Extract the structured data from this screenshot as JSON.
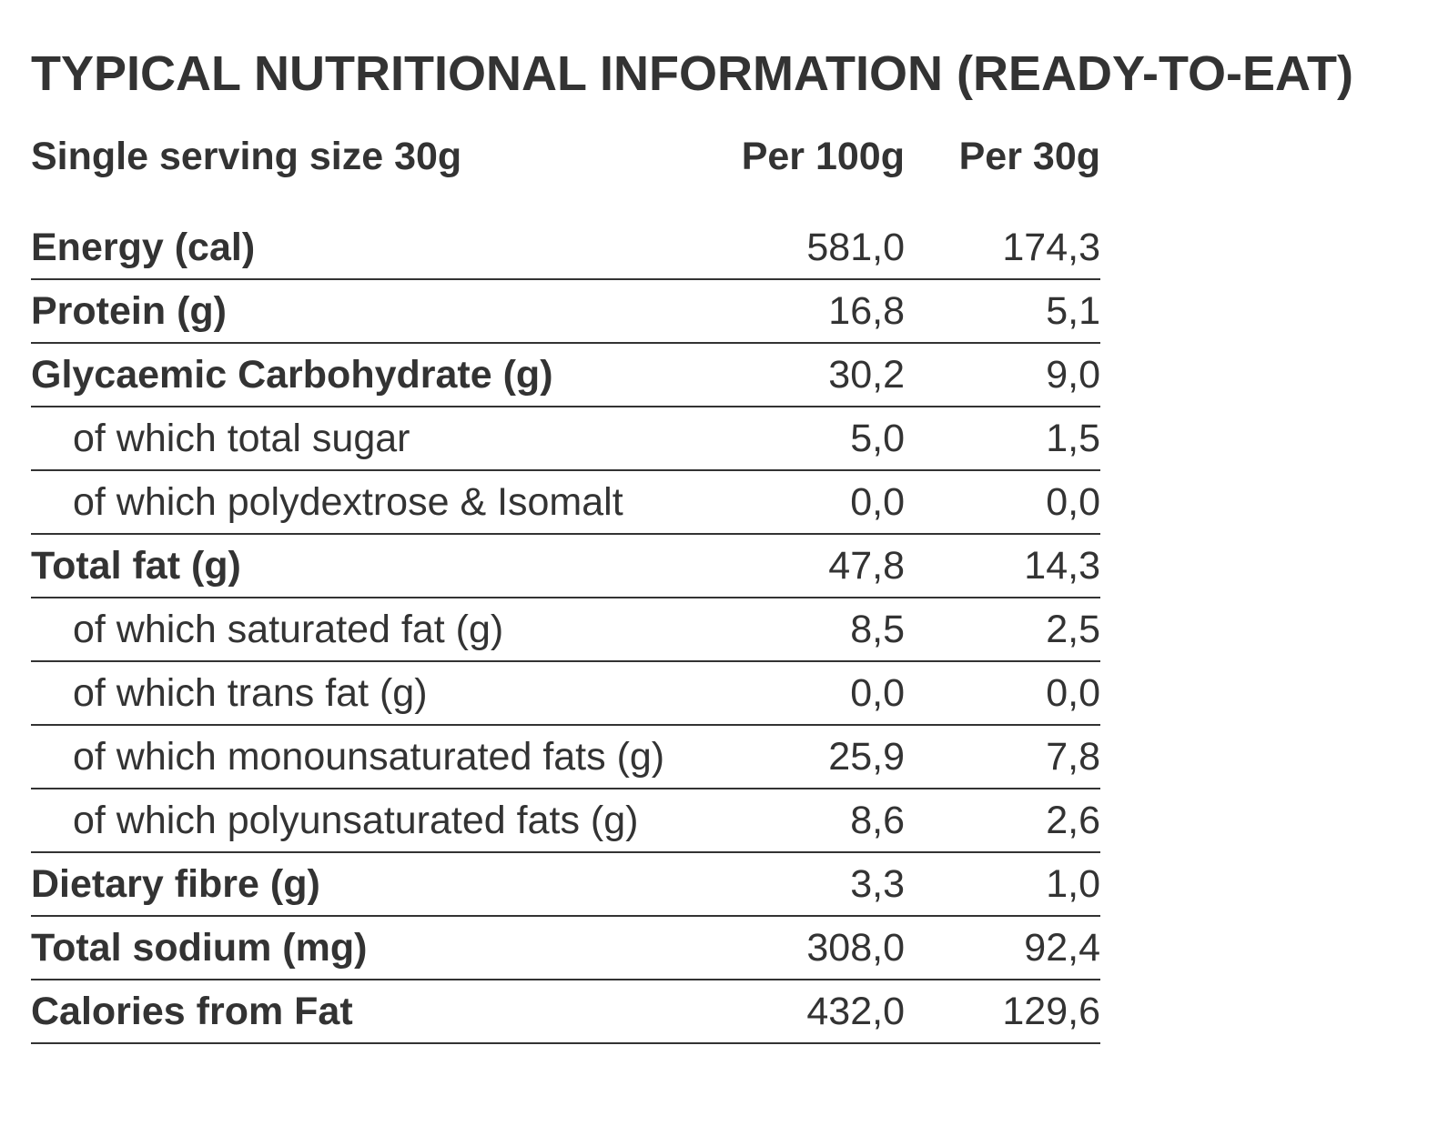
{
  "title": "TYPICAL NUTRITIONAL INFORMATION (READY-TO-EAT)",
  "header": {
    "label": "Single serving size 30g",
    "col1": "Per 100g",
    "col2": "Per 30g"
  },
  "rows": [
    {
      "label": "Energy (cal)",
      "per100": "581,0",
      "per30": "174,3"
    },
    {
      "label": "Protein (g)",
      "per100": "16,8",
      "per30": "5,1"
    },
    {
      "label": "Glycaemic Carbohydrate (g)",
      "per100": "30,2",
      "per30": "9,0"
    },
    {
      "label": "of which total sugar",
      "per100": "5,0",
      "per30": "1,5"
    },
    {
      "label": "of which polydextrose & Isomalt",
      "per100": "0,0",
      "per30": "0,0"
    },
    {
      "label": "Total fat (g)",
      "per100": "47,8",
      "per30": "14,3"
    },
    {
      "label": "of which saturated fat (g)",
      "per100": "8,5",
      "per30": "2,5"
    },
    {
      "label": "of which trans fat (g)",
      "per100": "0,0",
      "per30": "0,0"
    },
    {
      "label": "of which monounsaturated fats (g)",
      "per100": "25,9",
      "per30": "7,8"
    },
    {
      "label": "of which polyunsaturated fats (g)",
      "per100": "8,6",
      "per30": "2,6"
    },
    {
      "label": "Dietary fibre (g)",
      "per100": "3,3",
      "per30": "1,0"
    },
    {
      "label": "Total sodium (mg)",
      "per100": "308,0",
      "per30": "92,4"
    },
    {
      "label": "Calories from Fat",
      "per100": "432,0",
      "per30": "129,6"
    }
  ],
  "colors": {
    "text": "#333333",
    "rule": "#333333",
    "background": "#ffffff"
  }
}
